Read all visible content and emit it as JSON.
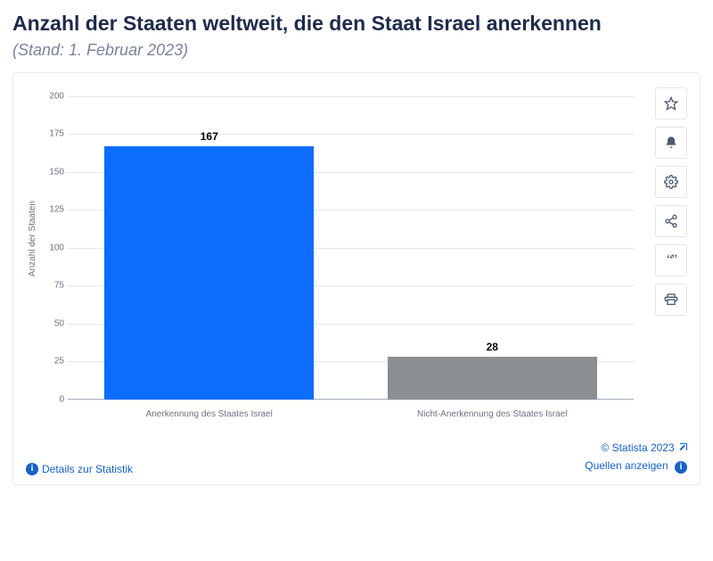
{
  "title": "Anzahl der Staaten weltweit, die den Staat Israel anerkennen",
  "subtitle": "(Stand: 1. Februar 2023)",
  "chart": {
    "type": "bar",
    "yaxis_title": "Anzahl der Staaten",
    "ylim": [
      0,
      200
    ],
    "ytick_step": 25,
    "yticks": [
      0,
      25,
      50,
      75,
      100,
      125,
      150,
      175,
      200
    ],
    "grid_color": "#e5e7eb",
    "baseline_color": "#b0b7c3",
    "background_color": "#ffffff",
    "label_fontsize": 10,
    "value_label_fontsize": 12,
    "bar_width_pct": 74,
    "categories": [
      "Anerkennung des Staates Israel",
      "Nicht-Anerkennung des Staates Israel"
    ],
    "values": [
      167,
      28
    ],
    "bar_colors": [
      "#0d6efd",
      "#8a8f94"
    ]
  },
  "toolbar": {
    "items": [
      {
        "name": "favorite-icon"
      },
      {
        "name": "bell-icon"
      },
      {
        "name": "gear-icon"
      },
      {
        "name": "share-icon"
      },
      {
        "name": "quote-icon"
      },
      {
        "name": "print-icon"
      }
    ]
  },
  "footer": {
    "details_label": "Details zur Statistik",
    "copyright": "© Statista 2023",
    "sources_label": "Quellen anzeigen"
  }
}
